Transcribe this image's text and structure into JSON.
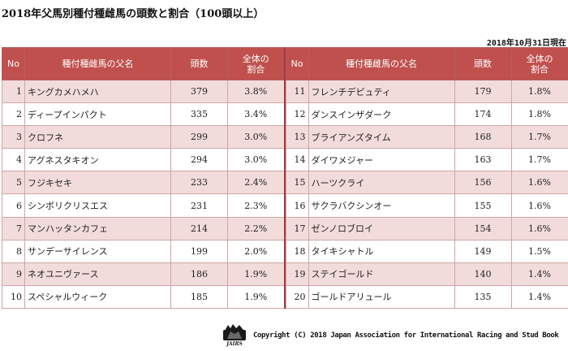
{
  "title": "2018年父馬別種付種雌馬の頭数と割合（100頭以上）",
  "as_of": "2018年10月31日現在",
  "headers": {
    "no": "No",
    "name": "種付種雌馬の父名",
    "count": "頭数",
    "share_line1": "全体の",
    "share_line2": "割合"
  },
  "left_rows": [
    {
      "no": "1",
      "name": "キングカメハメハ",
      "count": "379",
      "pct": "3.8%"
    },
    {
      "no": "2",
      "name": "ディープインパクト",
      "count": "335",
      "pct": "3.4%"
    },
    {
      "no": "3",
      "name": "クロフネ",
      "count": "299",
      "pct": "3.0%"
    },
    {
      "no": "4",
      "name": "アグネスタキオン",
      "count": "294",
      "pct": "3.0%"
    },
    {
      "no": "5",
      "name": "フジキセキ",
      "count": "233",
      "pct": "2.4%"
    },
    {
      "no": "6",
      "name": "シンボリクリスエス",
      "count": "231",
      "pct": "2.3%"
    },
    {
      "no": "7",
      "name": "マンハッタンカフェ",
      "count": "214",
      "pct": "2.2%"
    },
    {
      "no": "8",
      "name": "サンデーサイレンス",
      "count": "199",
      "pct": "2.0%"
    },
    {
      "no": "9",
      "name": "ネオユニヴァース",
      "count": "186",
      "pct": "1.9%"
    },
    {
      "no": "10",
      "name": "スペシャルウィーク",
      "count": "185",
      "pct": "1.9%"
    }
  ],
  "right_rows": [
    {
      "no": "11",
      "name": "フレンチデピュティ",
      "count": "179",
      "pct": "1.8%"
    },
    {
      "no": "12",
      "name": "ダンスインザダーク",
      "count": "174",
      "pct": "1.8%"
    },
    {
      "no": "13",
      "name": "ブライアンズタイム",
      "count": "168",
      "pct": "1.7%"
    },
    {
      "no": "14",
      "name": "ダイワメジャー",
      "count": "163",
      "pct": "1.7%"
    },
    {
      "no": "15",
      "name": "ハーツクライ",
      "count": "156",
      "pct": "1.6%"
    },
    {
      "no": "16",
      "name": "サクラバクシンオー",
      "count": "155",
      "pct": "1.6%"
    },
    {
      "no": "17",
      "name": "ゼンノロブロイ",
      "count": "154",
      "pct": "1.6%"
    },
    {
      "no": "18",
      "name": "タイキシャトル",
      "count": "149",
      "pct": "1.5%"
    },
    {
      "no": "19",
      "name": "ステイゴールド",
      "count": "140",
      "pct": "1.4%"
    },
    {
      "no": "20",
      "name": "ゴールドアリュール",
      "count": "135",
      "pct": "1.4%"
    }
  ],
  "footer": {
    "logo_icon": "jairs-horse-logo-icon",
    "logo_text": "JAIRS",
    "copyright": "Copyright (C) 2018 Japan Association for International Racing and Stud Book"
  },
  "colors": {
    "header_bg": "#c0504d",
    "row_alt": "#f2dcdb",
    "divider": "#a33a3d"
  }
}
